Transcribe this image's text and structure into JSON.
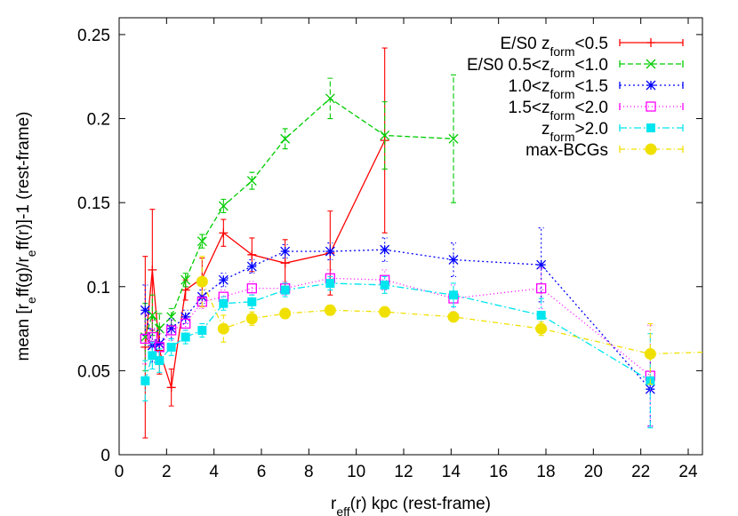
{
  "chart_data": {
    "type": "line",
    "xlabel": {
      "main": "r",
      "sub": "eff",
      "tail": "(r) kpc (rest-frame)"
    },
    "ylabel": {
      "p1": "mean [r",
      "s1": "e",
      "p2": "ff(g)/r",
      "s2": "e",
      "p3": "ff(r)]-1 (rest-frame)"
    },
    "xlim": [
      0,
      24.6
    ],
    "ylim": [
      0,
      0.26
    ],
    "xticks": [
      "0",
      "2",
      "4",
      "6",
      "8",
      "10",
      "12",
      "14",
      "16",
      "18",
      "20",
      "22",
      "24"
    ],
    "yticks": [
      "0",
      "0.05",
      "0.1",
      "0.15",
      "0.2",
      "0.25"
    ],
    "grid": false,
    "legend_position": "top-right",
    "series": [
      {
        "legend": {
          "pre": "E/S0 z",
          "sub": "form",
          "post": "<0.5"
        },
        "color": "#ff0000",
        "dash": "",
        "marker": "plus",
        "x": [
          1.1,
          1.4,
          1.7,
          2.2,
          2.8,
          3.5,
          4.4,
          5.6,
          7.0,
          8.9,
          11.2
        ],
        "y": [
          0.064,
          0.11,
          0.062,
          0.04,
          0.098,
          0.105,
          0.132,
          0.119,
          0.114,
          0.12,
          0.187
        ],
        "err": [
          0.054,
          0.036,
          0.014,
          0.011,
          0.006,
          0.012,
          0.008,
          0.01,
          0.014,
          0.025,
          0.055
        ]
      },
      {
        "legend": {
          "pre": "E/S0 0.5<z",
          "sub": "form",
          "post": "<1.0"
        },
        "color": "#00cc00",
        "dash": "6,3",
        "marker": "x",
        "x": [
          1.1,
          1.4,
          1.7,
          2.2,
          2.8,
          3.5,
          4.4,
          5.6,
          7.0,
          8.9,
          11.2,
          14.1
        ],
        "y": [
          0.07,
          0.083,
          0.075,
          0.082,
          0.104,
          0.127,
          0.148,
          0.163,
          0.188,
          0.212,
          0.19,
          0.188
        ],
        "err": [
          0.02,
          0.012,
          0.009,
          0.005,
          0.004,
          0.004,
          0.004,
          0.005,
          0.006,
          0.012,
          0.02,
          0.038
        ]
      },
      {
        "legend": {
          "pre": "1.0<z",
          "sub": "form",
          "post": "<1.5"
        },
        "color": "#0000ff",
        "dash": "2,3",
        "marker": "star",
        "x": [
          1.1,
          1.4,
          1.7,
          2.2,
          2.8,
          3.5,
          4.4,
          5.6,
          7.0,
          8.9,
          11.2,
          14.1,
          17.8,
          22.4
        ],
        "y": [
          0.086,
          0.065,
          0.066,
          0.075,
          0.082,
          0.094,
          0.104,
          0.112,
          0.121,
          0.121,
          0.122,
          0.116,
          0.113,
          0.039
        ],
        "err": [
          0.015,
          0.01,
          0.008,
          0.006,
          0.004,
          0.004,
          0.004,
          0.004,
          0.004,
          0.005,
          0.007,
          0.01,
          0.022,
          0.022
        ]
      },
      {
        "legend": {
          "pre": "1.5<z",
          "sub": "form",
          "post": "<2.0"
        },
        "color": "#ff00ff",
        "dash": "1,3",
        "marker": "square-open",
        "x": [
          1.1,
          1.4,
          1.7,
          2.2,
          2.8,
          3.5,
          4.4,
          5.6,
          7.0,
          8.9,
          11.2,
          14.1,
          17.8,
          22.4
        ],
        "y": [
          0.069,
          0.07,
          0.064,
          0.074,
          0.078,
          0.091,
          0.094,
          0.099,
          0.099,
          0.105,
          0.104,
          0.093,
          0.099,
          0.047
        ],
        "err": [
          0.015,
          0.01,
          0.008,
          0.006,
          0.004,
          0.004,
          0.004,
          0.004,
          0.004,
          0.005,
          0.006,
          0.008,
          0.012,
          0.03
        ]
      },
      {
        "legend": {
          "pre": "z",
          "sub": "form",
          "post": ">2.0"
        },
        "color": "#00e5ee",
        "dash": "8,3,2,3",
        "marker": "square",
        "x": [
          1.1,
          1.4,
          1.7,
          2.2,
          2.8,
          3.5,
          4.4,
          5.6,
          7.0,
          8.9,
          11.2,
          14.1,
          17.8,
          22.4
        ],
        "y": [
          0.044,
          0.059,
          0.056,
          0.064,
          0.07,
          0.074,
          0.09,
          0.091,
          0.098,
          0.102,
          0.101,
          0.095,
          0.083,
          0.044
        ],
        "err": [
          0.012,
          0.008,
          0.007,
          0.005,
          0.004,
          0.004,
          0.004,
          0.004,
          0.004,
          0.004,
          0.005,
          0.007,
          0.01,
          0.028
        ]
      },
      {
        "legend": {
          "pre": "max-BCGs",
          "sub": "",
          "post": ""
        },
        "color": "#f0e000",
        "dash": "6,3,1,3",
        "marker": "circle",
        "x": [
          3.5,
          4.4,
          5.6,
          7.0,
          8.9,
          11.2,
          14.1,
          17.8,
          22.4,
          24.6
        ],
        "y": [
          0.103,
          0.075,
          0.081,
          0.084,
          0.086,
          0.085,
          0.082,
          0.075,
          0.06,
          0.061
        ],
        "err": [
          0.015,
          0.008,
          0.004,
          0.003,
          0.003,
          0.003,
          0.003,
          0.004,
          0.018,
          0
        ],
        "markers": [
          1,
          1,
          1,
          1,
          1,
          1,
          1,
          1,
          1,
          0
        ]
      }
    ]
  }
}
